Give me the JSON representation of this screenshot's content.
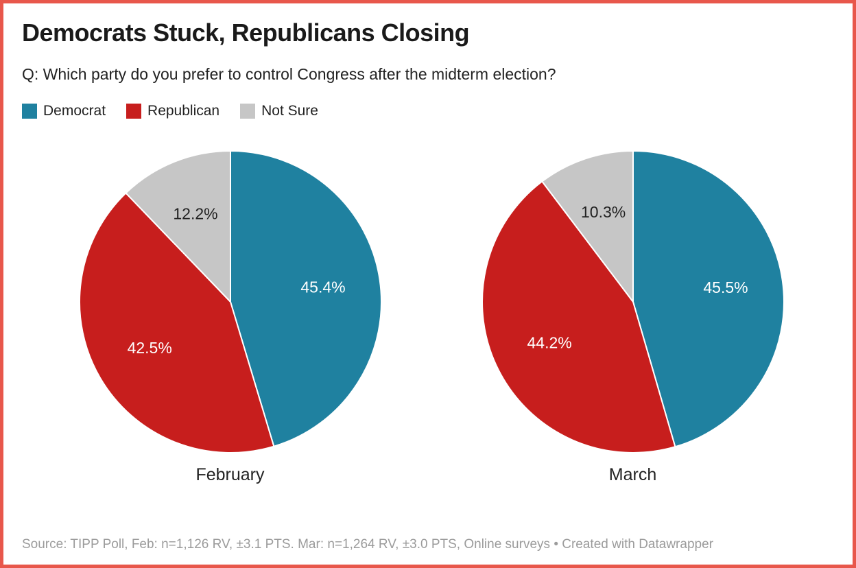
{
  "header": {
    "title": "Democrats Stuck, Republicans Closing",
    "subtitle": "Q: Which party do you prefer to control Congress after the midterm election?"
  },
  "legend": {
    "position": "top",
    "items": [
      {
        "label": "Democrat",
        "color": "#1f81a0"
      },
      {
        "label": "Republican",
        "color": "#c71e1d"
      },
      {
        "label": "Not Sure",
        "color": "#c6c6c6"
      }
    ]
  },
  "chart_data": [
    {
      "type": "pie",
      "title": "February",
      "start_angle_deg": 0,
      "direction": "clockwise",
      "slices": [
        {
          "label": "Democrat",
          "value": 45.4,
          "display": "45.4%",
          "color": "#1f81a0",
          "label_color": "#ffffff"
        },
        {
          "label": "Republican",
          "value": 42.5,
          "display": "42.5%",
          "color": "#c71e1d",
          "label_color": "#ffffff"
        },
        {
          "label": "Not Sure",
          "value": 12.2,
          "display": "12.2%",
          "color": "#c6c6c6",
          "label_color": "#222222"
        }
      ]
    },
    {
      "type": "pie",
      "title": "March",
      "start_angle_deg": 0,
      "direction": "clockwise",
      "slices": [
        {
          "label": "Democrat",
          "value": 45.5,
          "display": "45.5%",
          "color": "#1f81a0",
          "label_color": "#ffffff"
        },
        {
          "label": "Republican",
          "value": 44.2,
          "display": "44.2%",
          "color": "#c71e1d",
          "label_color": "#ffffff"
        },
        {
          "label": "Not Sure",
          "value": 10.3,
          "display": "10.3%",
          "color": "#c6c6c6",
          "label_color": "#222222"
        }
      ]
    }
  ],
  "footer": {
    "source": "Source: TIPP Poll, Feb: n=1,126 RV, ±3.1 PTS. Mar: n=1,264 RV, ±3.0 PTS, Online surveys",
    "separator": "•",
    "credit": "Created with Datawrapper"
  },
  "colors": {
    "border": "#e8574b",
    "title_text": "#1a1a1a",
    "body_text": "#222222",
    "muted_text": "#9b9b9b",
    "slice_gap": "#ffffff"
  }
}
